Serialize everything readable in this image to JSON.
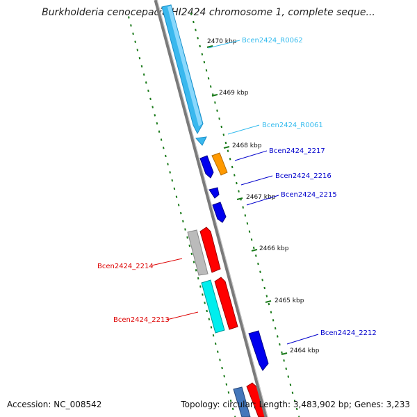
{
  "title": "Burkholderia cenocepacia HI2424 chromosome 1, complete seque...",
  "footer": {
    "accession": "Accession: NC_008542",
    "summary": "Topology: circular; Length: 3,483,902 bp; Genes: 3,233"
  },
  "colors": {
    "backbone": "#888888",
    "tick": "#1a7a1a",
    "rna_label": "#33bbee",
    "gene_blue": "#0000cc",
    "gene_red": "#dd0000"
  },
  "ticks": [
    {
      "label": "2470 kbp"
    },
    {
      "label": "2469 kbp"
    },
    {
      "label": "2468 kbp"
    },
    {
      "label": "2467 kbp"
    },
    {
      "label": "2466 kbp"
    },
    {
      "label": "2465 kbp"
    },
    {
      "label": "2464 kbp"
    }
  ],
  "genes": [
    {
      "name": "Bcen2424_R0062",
      "color": "#33bbee"
    },
    {
      "name": "Bcen2424_R0061",
      "color": "#33bbee"
    },
    {
      "name": "Bcen2424_2217",
      "color": "#0000cc"
    },
    {
      "name": "Bcen2424_2216",
      "color": "#0000cc"
    },
    {
      "name": "Bcen2424_2215",
      "color": "#0000cc"
    },
    {
      "name": "Bcen2424_2214",
      "color": "#dd0000"
    },
    {
      "name": "Bcen2424_2213",
      "color": "#dd0000"
    },
    {
      "name": "Bcen2424_2212",
      "color": "#0000cc"
    }
  ]
}
